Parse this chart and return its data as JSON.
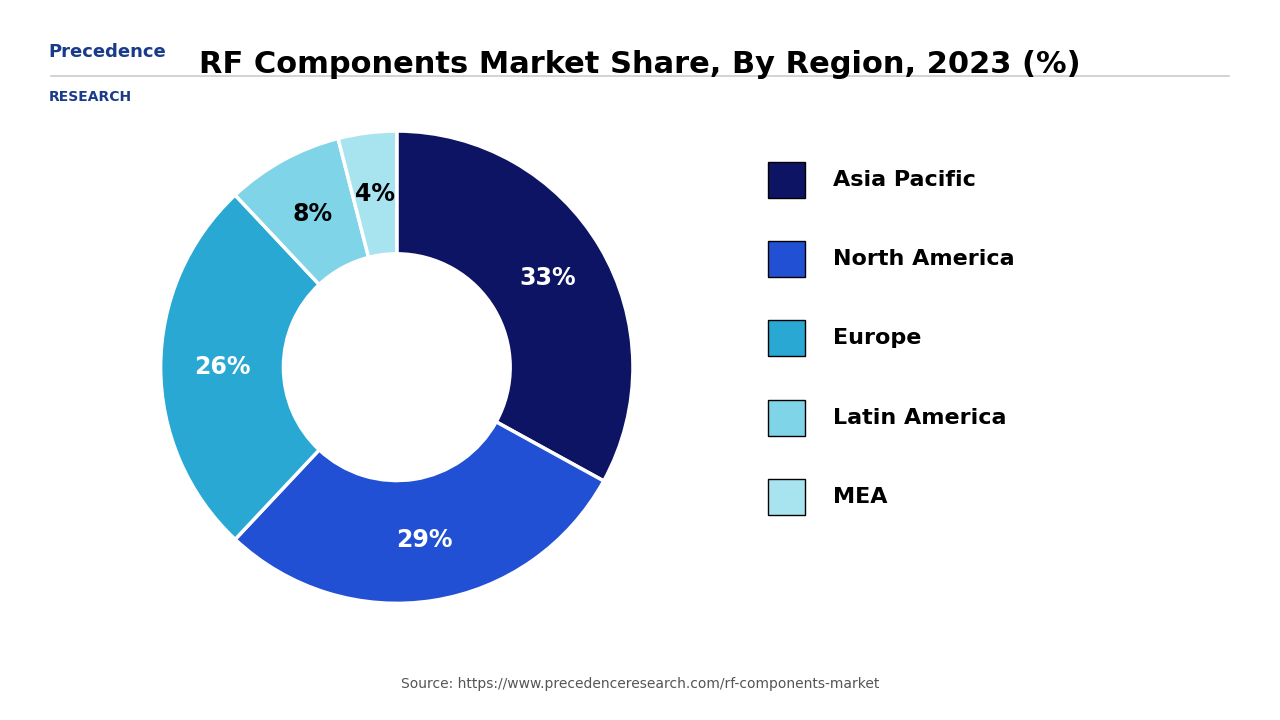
{
  "title": "RF Components Market Share, By Region, 2023 (%)",
  "labels": [
    "Asia Pacific",
    "North America",
    "Europe",
    "Latin America",
    "MEA"
  ],
  "values": [
    33,
    29,
    26,
    8,
    4
  ],
  "colors": [
    "#0d1464",
    "#2250d4",
    "#29a8d4",
    "#7fd4e8",
    "#a8e4f0"
  ],
  "label_colors": [
    "white",
    "white",
    "white",
    "black",
    "black"
  ],
  "source_text": "Source: https://www.precedenceresearch.com/rf-components-market",
  "logo_text_top": "Precedence",
  "logo_text_bottom": "RESEARCH",
  "bg_color": "#ffffff",
  "legend_fontsize": 16,
  "title_fontsize": 22,
  "pct_fontsize": 17
}
